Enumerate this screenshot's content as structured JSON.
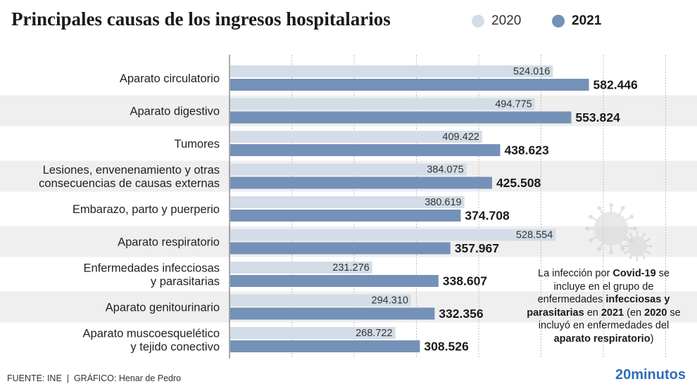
{
  "title": "Principales causas de los ingresos hospitalarios",
  "legend": {
    "label_2020": "2020",
    "label_2021": "2021",
    "color_2020": "#d3dde8",
    "color_2021": "#7491b8"
  },
  "note": {
    "p1": "La infección por ",
    "p2": "Covid-19",
    "p3": " se incluye en el grupo de enfermedades ",
    "p4": "infecciosas y parasitarias",
    "p5": " en ",
    "p6": "2021",
    "p7": " (en ",
    "p8": "2020",
    "p9": " se incluyó en enfermedades del ",
    "p10": "aparato respiratorio",
    "p11": ")"
  },
  "footer": {
    "source": "FUENTE: INE",
    "separator": "|",
    "credit": "GRÁFICO: Henar de Pedro"
  },
  "brand": "20minutos",
  "chart_data": {
    "type": "bar",
    "orientation": "horizontal",
    "title": "Principales causas de los ingresos hospitalarios",
    "categories": [
      [
        "Aparato circulatorio"
      ],
      [
        "Aparato digestivo"
      ],
      [
        "Tumores"
      ],
      [
        "Lesiones, envenenamiento y otras",
        "consecuencias de causas externas"
      ],
      [
        "Embarazo, parto y puerperio"
      ],
      [
        "Aparato respiratorio"
      ],
      [
        "Enfermedades infecciosas",
        "y parasitarias"
      ],
      [
        "Aparato genitourinario"
      ],
      [
        "Aparato muscoesquelético",
        "y tejido conectivo"
      ]
    ],
    "series": [
      {
        "name": "2020",
        "color": "#d3dde8",
        "values": [
          524016,
          494775,
          409422,
          384075,
          380619,
          528554,
          231276,
          294310,
          268722
        ],
        "labels": [
          "524.016",
          "494.775",
          "409.422",
          "384.075",
          "380.619",
          "528.554",
          "231.276",
          "294.310",
          "268.722"
        ]
      },
      {
        "name": "2021",
        "color": "#7491b8",
        "values": [
          582446,
          553824,
          438623,
          425508,
          374708,
          357967,
          338607,
          332356,
          308526
        ],
        "labels": [
          "582.446",
          "553.824",
          "438.623",
          "425.508",
          "374.708",
          "357.967",
          "338.607",
          "332.356",
          "308.526"
        ]
      }
    ],
    "xlim": [
      0,
      700000
    ],
    "grid": true,
    "legend_position": "top-right",
    "row_band_color": "#efefef"
  }
}
